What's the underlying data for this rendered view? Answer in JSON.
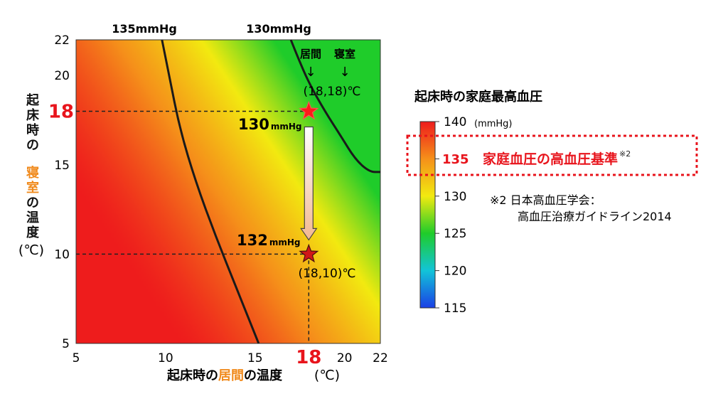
{
  "chart_data": {
    "type": "heatmap",
    "xlabel_parts": [
      "起床時の",
      "居間",
      "の温度"
    ],
    "xunit": "(℃)",
    "ylabel_chars": [
      "起",
      "床",
      "時",
      "の",
      "寝",
      "室",
      "の",
      "温",
      "度"
    ],
    "yunit": "(℃)",
    "xlim": [
      5,
      22
    ],
    "ylim": [
      5,
      22
    ],
    "x_ticks": [
      "5",
      "10",
      "15",
      "20",
      "22"
    ],
    "y_ticks": [
      "22",
      "20",
      "15",
      "10",
      "5"
    ],
    "highlight_tick": "18",
    "contours": [
      {
        "label": "135mmHg",
        "points": [
          [
            9.8,
            22
          ],
          [
            10.2,
            20
          ],
          [
            10.8,
            17
          ],
          [
            11.7,
            14
          ],
          [
            12.8,
            11
          ],
          [
            14.0,
            8
          ],
          [
            15.0,
            5.5
          ],
          [
            15.2,
            5
          ]
        ]
      },
      {
        "label": "130mmHg",
        "points": [
          [
            17.0,
            22
          ],
          [
            17.4,
            21
          ],
          [
            18.0,
            19.6
          ],
          [
            18.9,
            18.0
          ],
          [
            19.8,
            16.6
          ],
          [
            20.6,
            15.3
          ],
          [
            21.4,
            14.6
          ],
          [
            22,
            14.6
          ]
        ]
      }
    ],
    "points": [
      {
        "x": 18,
        "y": 18,
        "label": "130",
        "unit": "mmHg",
        "coord": "(18,18)℃"
      },
      {
        "x": 18,
        "y": 10,
        "label": "132",
        "unit": "mmHg",
        "coord": "(18,10)℃"
      }
    ],
    "point_header": [
      "居間",
      "寝室"
    ],
    "arrow_glyph": "↓",
    "colorbar": {
      "title": "起床時の家庭最高血圧",
      "unit": "(mmHg)",
      "ticks": [
        "140",
        "135",
        "130",
        "125",
        "120",
        "115"
      ],
      "colors": [
        "#ee1c1c",
        "#f5901a",
        "#f2ea10",
        "#1fcc2a",
        "#12c4d8",
        "#1a3fe6"
      ]
    },
    "threshold": {
      "value": "135",
      "text": "家庭血圧の高血圧基準",
      "note": "※2"
    },
    "footnote": [
      "※2 日本高血圧学会：",
      "高血圧治療ガイドライン2014"
    ]
  }
}
